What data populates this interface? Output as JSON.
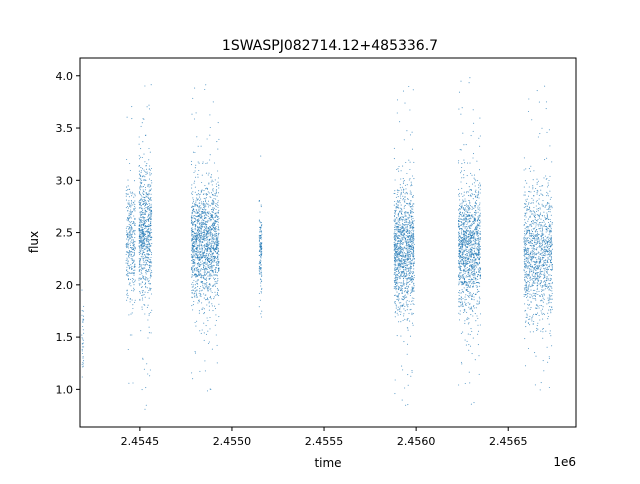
{
  "chart_data": {
    "type": "scatter",
    "title": "1SWASPJ082714.12+485336.7",
    "xlabel": "time",
    "ylabel": "flux",
    "x_offset_label": "1e6",
    "xlim": [
      2454175,
      2456868
    ],
    "ylim": [
      0.64,
      4.17
    ],
    "grid": false,
    "legend": "none",
    "marker_color": "#1f77b4",
    "x_ticks": [
      2454500,
      2455000,
      2455500,
      2456000,
      2456500
    ],
    "x_tick_labels": [
      "2.4545",
      "2.4550",
      "2.4555",
      "2.4560",
      "2.4565"
    ],
    "y_ticks": [
      1.0,
      1.5,
      2.0,
      2.5,
      3.0,
      3.5,
      4.0
    ],
    "y_tick_labels": [
      "1.0",
      "1.5",
      "2.0",
      "2.5",
      "3.0",
      "3.5",
      "4.0"
    ],
    "clusters": [
      {
        "x_start": 2454185,
        "x_end": 2454195,
        "y_center": 1.45,
        "y_spread": 0.22,
        "y_min": 0.9,
        "y_max": 1.95,
        "count": 35
      },
      {
        "x_start": 2454425,
        "x_end": 2454475,
        "y_center": 2.4,
        "y_spread": 0.28,
        "y_min": 0.95,
        "y_max": 3.85,
        "count": 320
      },
      {
        "x_start": 2454495,
        "x_end": 2454565,
        "y_center": 2.5,
        "y_spread": 0.32,
        "y_min": 0.8,
        "y_max": 4.0,
        "count": 750
      },
      {
        "x_start": 2454780,
        "x_end": 2454930,
        "y_center": 2.4,
        "y_spread": 0.28,
        "y_min": 0.95,
        "y_max": 3.95,
        "count": 1500
      },
      {
        "x_start": 2455148,
        "x_end": 2455162,
        "y_center": 2.3,
        "y_spread": 0.2,
        "y_min": 1.65,
        "y_max": 3.55,
        "count": 140
      },
      {
        "x_start": 2455880,
        "x_end": 2455990,
        "y_center": 2.35,
        "y_spread": 0.3,
        "y_min": 0.8,
        "y_max": 3.95,
        "count": 1200
      },
      {
        "x_start": 2456230,
        "x_end": 2456350,
        "y_center": 2.35,
        "y_spread": 0.3,
        "y_min": 0.82,
        "y_max": 4.02,
        "count": 1250
      },
      {
        "x_start": 2456585,
        "x_end": 2456740,
        "y_center": 2.3,
        "y_spread": 0.32,
        "y_min": 0.95,
        "y_max": 3.95,
        "count": 1150
      }
    ]
  }
}
